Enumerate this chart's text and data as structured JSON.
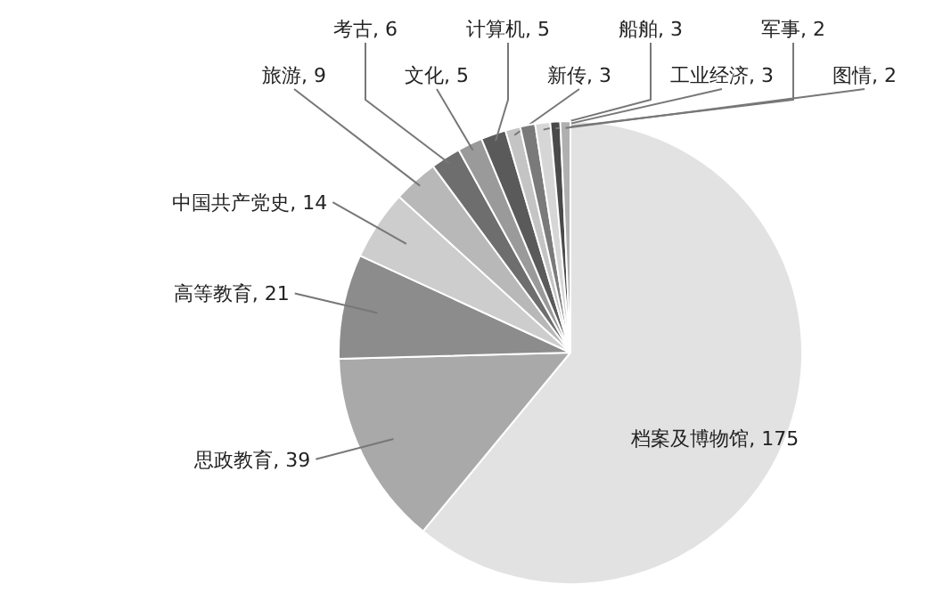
{
  "chart_data": {
    "type": "pie",
    "value_labels": [
      ", 175",
      ", 39",
      ", 21",
      ", 14",
      ", 9",
      ", 6",
      ", 5",
      ", 5",
      ", 3",
      ", 3",
      ", 3",
      ", 2",
      ", 2"
    ],
    "categories": [
      "档案及博物馆",
      "思政教育",
      "高等教育",
      "中国共产党史",
      "旅游",
      "考古",
      "文化",
      "计算机",
      "新传",
      "船舶",
      "工业经济",
      "军事",
      "图情"
    ],
    "values": [
      175,
      39,
      21,
      14,
      9,
      6,
      5,
      5,
      3,
      3,
      3,
      2,
      2
    ],
    "colors": [
      "#e2e2e2",
      "#a9a9a9",
      "#8c8c8c",
      "#cdcdcd",
      "#b8b8b8",
      "#6e6e6e",
      "#9a9a9a",
      "#5a5a5a",
      "#c4c4c4",
      "#7a7a7a",
      "#d6d6d6",
      "#4a4a4a",
      "#b0b0b0"
    ]
  }
}
